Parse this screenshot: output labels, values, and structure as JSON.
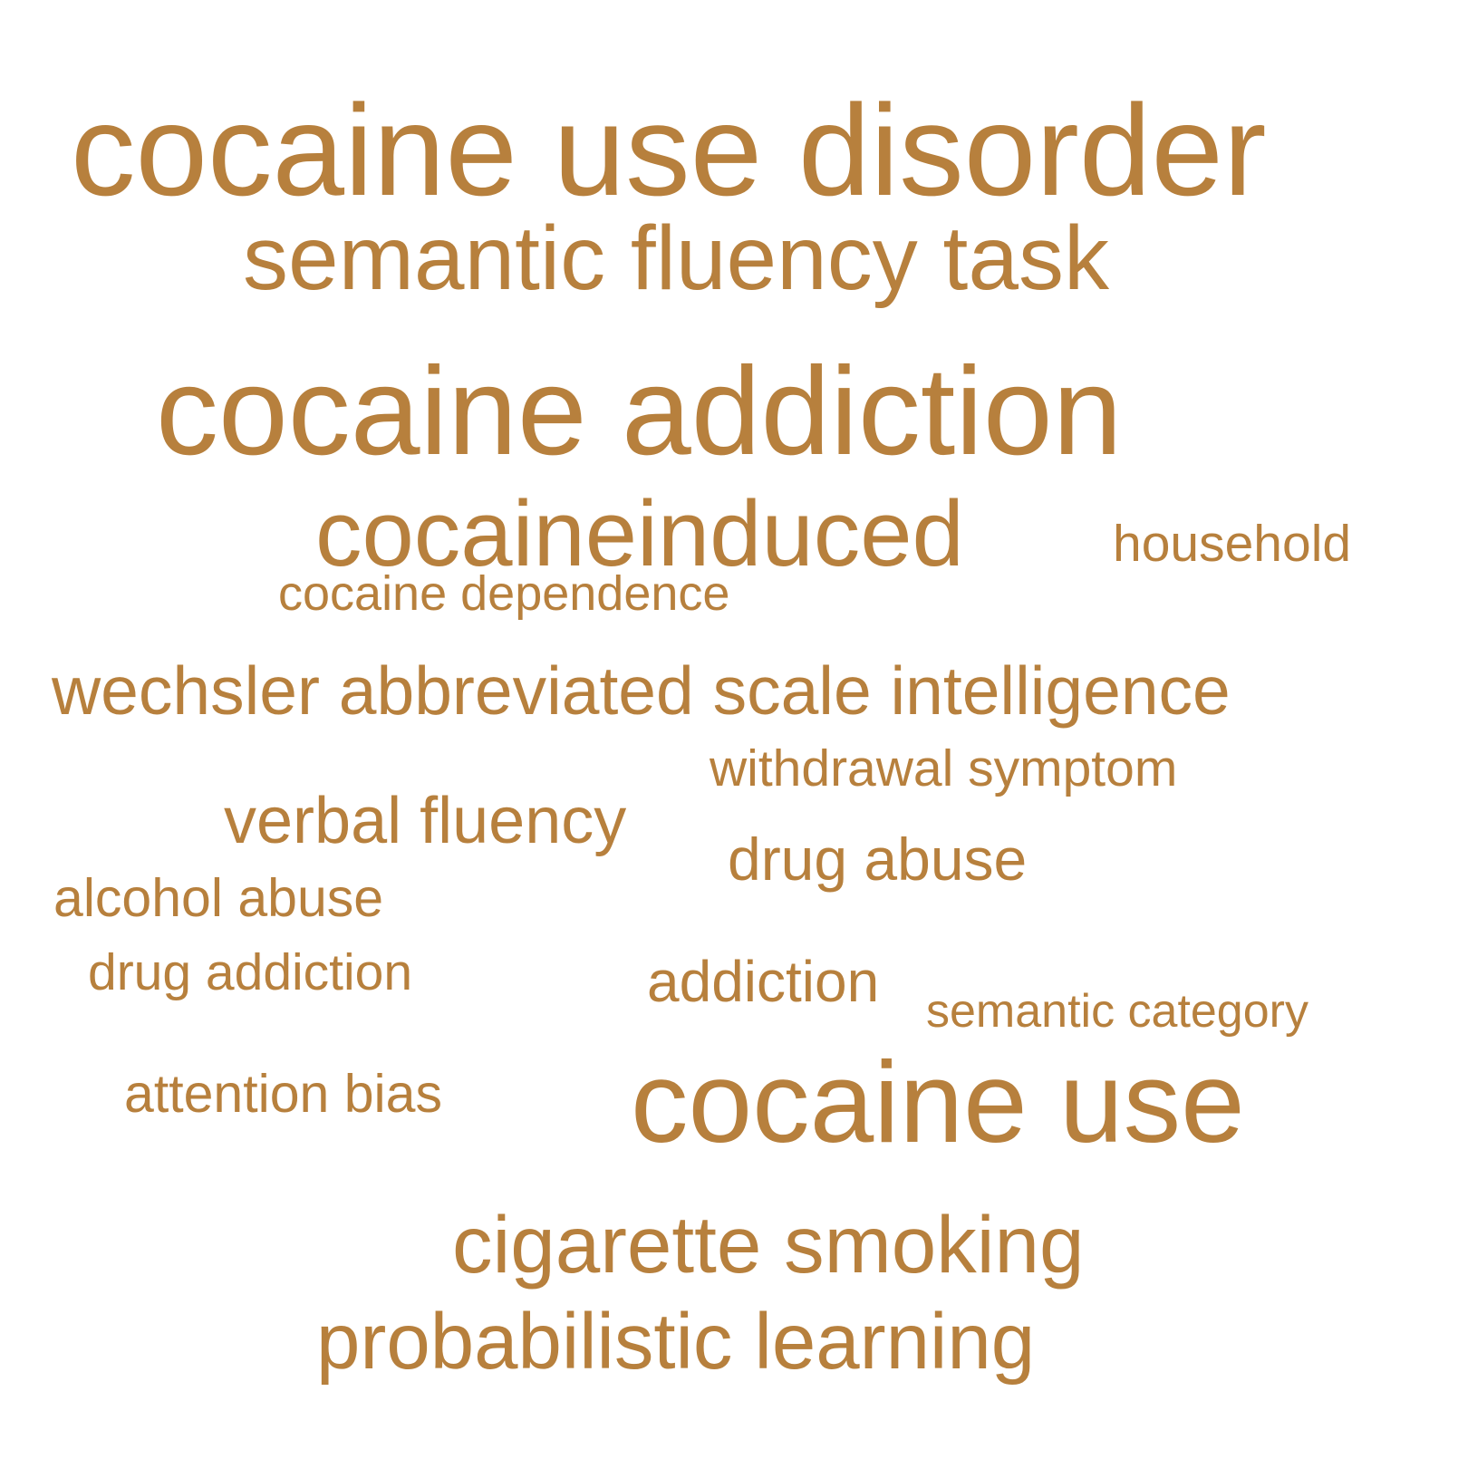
{
  "color": "#b7803d",
  "words": [
    "cocaine use disorder",
    "semantic fluency task",
    "cocaine addiction",
    "cocaineinduced",
    "household",
    "cocaine dependence",
    "wechsler abbreviated scale intelligence",
    "withdrawal symptom",
    "verbal fluency",
    "drug abuse",
    "alcohol abuse",
    "drug addiction",
    "addiction",
    "semantic category",
    "attention bias",
    "cocaine use",
    "cigarette smoking",
    "probabilistic learning"
  ]
}
